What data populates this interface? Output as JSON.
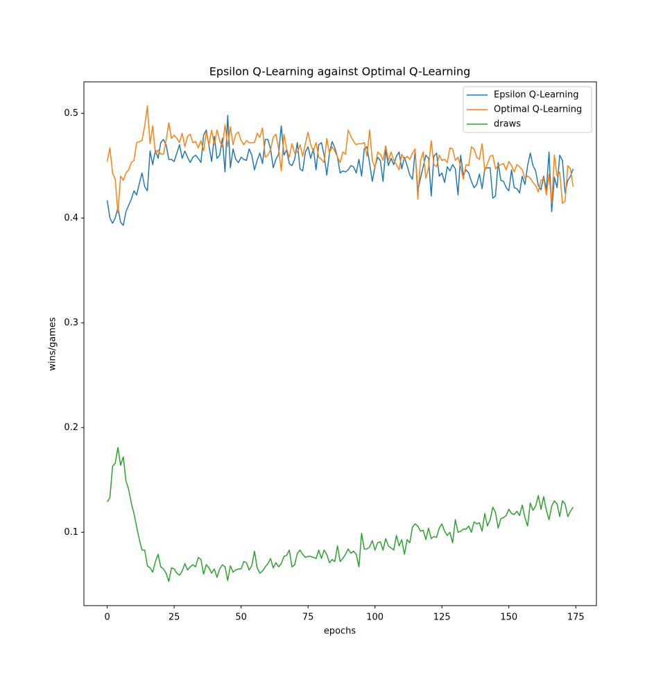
{
  "chart_data": {
    "type": "line",
    "title": "Epsilon Q-Learning against Optimal Q-Learning",
    "x_label": "epochs",
    "y_label": "wins/games",
    "x": [
      0,
      1,
      2,
      3,
      4,
      5,
      6,
      7,
      8,
      9,
      10,
      11,
      12,
      13,
      14,
      15,
      16,
      17,
      18,
      19,
      20,
      21,
      22,
      23,
      24,
      25,
      26,
      27,
      28,
      29,
      30,
      31,
      32,
      33,
      34,
      35,
      36,
      37,
      38,
      39,
      40,
      41,
      42,
      43,
      44,
      45,
      46,
      47,
      48,
      49,
      50,
      51,
      52,
      53,
      54,
      55,
      56,
      57,
      58,
      59,
      60,
      61,
      62,
      63,
      64,
      65,
      66,
      67,
      68,
      69,
      70,
      71,
      72,
      73,
      74,
      75,
      76,
      77,
      78,
      79,
      80,
      81,
      82,
      83,
      84,
      85,
      86,
      87,
      88,
      89,
      90,
      91,
      92,
      93,
      94,
      95,
      96,
      97,
      98,
      99,
      100,
      101,
      102,
      103,
      104,
      105,
      106,
      107,
      108,
      109,
      110,
      111,
      112,
      113,
      114,
      115,
      116,
      117,
      118,
      119,
      120,
      121,
      122,
      123,
      124,
      125,
      126,
      127,
      128,
      129,
      130,
      131,
      132,
      133,
      134,
      135,
      136,
      137,
      138,
      139,
      140,
      141,
      142,
      143,
      144,
      145,
      146,
      147,
      148,
      149,
      150,
      151,
      152,
      153,
      154,
      155,
      156,
      157,
      158,
      159,
      160,
      161,
      162,
      163,
      164,
      165,
      166,
      167,
      168,
      169,
      170,
      171,
      172,
      173,
      174
    ],
    "series": [
      {
        "name": "Epsilon Q-Learning",
        "color": "#1f77b4",
        "values": [
          0.417,
          0.4,
          0.395,
          0.4,
          0.41,
          0.396,
          0.393,
          0.406,
          0.412,
          0.418,
          0.426,
          0.422,
          0.433,
          0.443,
          0.43,
          0.426,
          0.464,
          0.451,
          0.465,
          0.457,
          0.472,
          0.475,
          0.47,
          0.456,
          0.456,
          0.454,
          0.462,
          0.47,
          0.457,
          0.464,
          0.458,
          0.453,
          0.458,
          0.46,
          0.457,
          0.453,
          0.479,
          0.484,
          0.469,
          0.454,
          0.478,
          0.457,
          0.46,
          0.476,
          0.444,
          0.498,
          0.448,
          0.466,
          0.456,
          0.453,
          0.458,
          0.456,
          0.455,
          0.466,
          0.46,
          0.446,
          0.455,
          0.462,
          0.452,
          0.475,
          0.475,
          0.466,
          0.448,
          0.456,
          0.461,
          0.488,
          0.46,
          0.465,
          0.452,
          0.45,
          0.456,
          0.472,
          0.447,
          0.445,
          0.463,
          0.468,
          0.457,
          0.466,
          0.446,
          0.47,
          0.472,
          0.46,
          0.441,
          0.462,
          0.473,
          0.467,
          0.458,
          0.443,
          0.445,
          0.444,
          0.446,
          0.45,
          0.449,
          0.443,
          0.456,
          0.44,
          0.466,
          0.468,
          0.452,
          0.435,
          0.449,
          0.458,
          0.455,
          0.435,
          0.465,
          0.45,
          0.457,
          0.451,
          0.459,
          0.463,
          0.447,
          0.458,
          0.45,
          0.441,
          0.437,
          0.464,
          0.426,
          0.438,
          0.449,
          0.46,
          0.457,
          0.421,
          0.459,
          0.462,
          0.44,
          0.443,
          0.434,
          0.449,
          0.445,
          0.451,
          0.447,
          0.422,
          0.46,
          0.441,
          0.446,
          0.443,
          0.435,
          0.429,
          0.432,
          0.442,
          0.428,
          0.447,
          0.448,
          0.448,
          0.419,
          0.421,
          0.453,
          0.436,
          0.435,
          0.429,
          0.426,
          0.446,
          0.429,
          0.428,
          0.424,
          0.44,
          0.432,
          0.45,
          0.462,
          0.45,
          0.445,
          0.431,
          0.427,
          0.44,
          0.427,
          0.463,
          0.406,
          0.439,
          0.429,
          0.46,
          0.455,
          0.424,
          0.436,
          0.44,
          0.447
        ]
      },
      {
        "name": "Optimal Q-Learning",
        "color": "#ff7f0e",
        "values": [
          0.454,
          0.467,
          0.443,
          0.437,
          0.405,
          0.44,
          0.436,
          0.443,
          0.446,
          0.453,
          0.455,
          0.472,
          0.473,
          0.474,
          0.488,
          0.507,
          0.471,
          0.488,
          0.461,
          0.465,
          0.461,
          0.461,
          0.474,
          0.491,
          0.476,
          0.479,
          0.476,
          0.472,
          0.481,
          0.468,
          0.478,
          0.48,
          0.472,
          0.473,
          0.467,
          0.474,
          0.464,
          0.482,
          0.47,
          0.484,
          0.47,
          0.484,
          0.474,
          0.468,
          0.489,
          0.468,
          0.487,
          0.47,
          0.48,
          0.482,
          0.474,
          0.47,
          0.474,
          0.472,
          0.472,
          0.472,
          0.481,
          0.477,
          0.486,
          0.458,
          0.46,
          0.465,
          0.477,
          0.48,
          0.466,
          0.445,
          0.48,
          0.466,
          0.458,
          0.471,
          0.462,
          0.463,
          0.47,
          0.459,
          0.471,
          0.482,
          0.47,
          0.464,
          0.472,
          0.458,
          0.456,
          0.453,
          0.476,
          0.462,
          0.468,
          0.464,
          0.458,
          0.453,
          0.463,
          0.461,
          0.484,
          0.478,
          0.473,
          0.47,
          0.471,
          0.471,
          0.472,
          0.459,
          0.484,
          0.455,
          0.448,
          0.463,
          0.461,
          0.455,
          0.469,
          0.455,
          0.463,
          0.455,
          0.451,
          0.446,
          0.461,
          0.456,
          0.459,
          0.456,
          0.462,
          0.466,
          0.418,
          0.455,
          0.463,
          0.438,
          0.448,
          0.474,
          0.451,
          0.449,
          0.46,
          0.455,
          0.456,
          0.453,
          0.467,
          0.466,
          0.455,
          0.458,
          0.449,
          0.437,
          0.451,
          0.45,
          0.468,
          0.466,
          0.458,
          0.456,
          0.471,
          0.445,
          0.452,
          0.459,
          0.46,
          0.447,
          0.45,
          0.451,
          0.452,
          0.446,
          0.454,
          0.45,
          0.444,
          0.451,
          0.449,
          0.446,
          0.438,
          0.44,
          0.438,
          0.434,
          0.431,
          0.425,
          0.436,
          0.438,
          0.422,
          0.442,
          0.414,
          0.46,
          0.44,
          0.444,
          0.414,
          0.416,
          0.45,
          0.447,
          0.43
        ]
      },
      {
        "name": "draws",
        "color": "#2ca02c",
        "values": [
          0.129,
          0.133,
          0.163,
          0.166,
          0.181,
          0.164,
          0.172,
          0.149,
          0.141,
          0.128,
          0.118,
          0.105,
          0.093,
          0.083,
          0.083,
          0.068,
          0.066,
          0.062,
          0.072,
          0.079,
          0.067,
          0.065,
          0.061,
          0.053,
          0.066,
          0.065,
          0.061,
          0.059,
          0.063,
          0.07,
          0.064,
          0.067,
          0.069,
          0.067,
          0.076,
          0.074,
          0.06,
          0.069,
          0.066,
          0.061,
          0.065,
          0.057,
          0.065,
          0.069,
          0.067,
          0.054,
          0.068,
          0.062,
          0.064,
          0.065,
          0.065,
          0.072,
          0.071,
          0.064,
          0.068,
          0.082,
          0.066,
          0.061,
          0.063,
          0.067,
          0.07,
          0.075,
          0.066,
          0.071,
          0.067,
          0.07,
          0.077,
          0.078,
          0.083,
          0.067,
          0.069,
          0.08,
          0.083,
          0.079,
          0.076,
          0.077,
          0.077,
          0.076,
          0.075,
          0.083,
          0.075,
          0.083,
          0.079,
          0.071,
          0.074,
          0.072,
          0.087,
          0.072,
          0.075,
          0.079,
          0.084,
          0.08,
          0.082,
          0.079,
          0.067,
          0.099,
          0.084,
          0.084,
          0.086,
          0.092,
          0.083,
          0.09,
          0.091,
          0.083,
          0.094,
          0.087,
          0.085,
          0.083,
          0.097,
          0.087,
          0.093,
          0.079,
          0.093,
          0.09,
          0.105,
          0.108,
          0.106,
          0.101,
          0.102,
          0.093,
          0.104,
          0.094,
          0.096,
          0.095,
          0.104,
          0.108,
          0.101,
          0.097,
          0.1,
          0.09,
          0.112,
          0.1,
          0.101,
          0.103,
          0.103,
          0.106,
          0.1,
          0.11,
          0.108,
          0.109,
          0.101,
          0.118,
          0.106,
          0.112,
          0.124,
          0.119,
          0.104,
          0.113,
          0.114,
          0.116,
          0.122,
          0.118,
          0.117,
          0.12,
          0.116,
          0.126,
          0.114,
          0.106,
          0.128,
          0.121,
          0.125,
          0.135,
          0.122,
          0.134,
          0.121,
          0.112,
          0.125,
          0.13,
          0.127,
          0.115,
          0.13,
          0.127,
          0.115,
          0.12,
          0.124
        ]
      }
    ],
    "xlim": [
      -8.7,
      182.7
    ],
    "xticks": [
      0,
      25,
      50,
      75,
      100,
      125,
      150,
      175
    ],
    "ylim": [
      0.03,
      0.53
    ],
    "yticks": [
      0.1,
      0.2,
      0.3,
      0.4,
      0.5
    ],
    "legend": "upper right",
    "grid": false
  }
}
